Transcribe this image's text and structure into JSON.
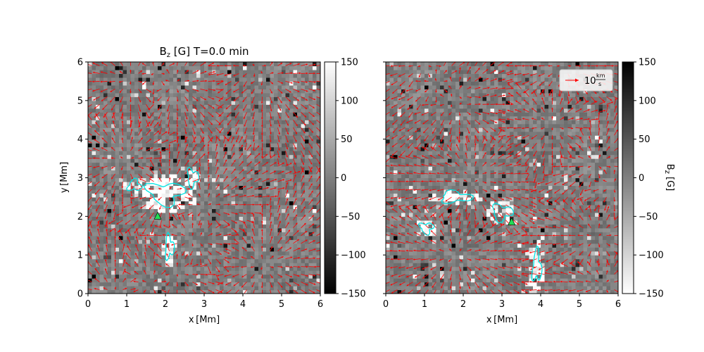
{
  "chart_data": [
    {
      "type": "heatmap",
      "title_main": "B",
      "title_sub": "z",
      "title_rest": " [G] T=0.0 min",
      "xlabel": "x [Mm]",
      "ylabel": "y [Mm]",
      "xlim": [
        0,
        6
      ],
      "ylim": [
        0,
        6
      ],
      "xticks": [
        "0",
        "1",
        "2",
        "3",
        "4",
        "5",
        "6"
      ],
      "yticks": [
        "0",
        "1",
        "2",
        "3",
        "4",
        "5",
        "6"
      ],
      "colormap": "gray",
      "clim": [
        -150,
        150
      ],
      "colorbar_ticks": [
        "−150",
        "−100",
        "−50",
        "0",
        "50",
        "100",
        "150"
      ],
      "vector_color": "#ff0000",
      "contour_color": "#00e5e5",
      "marker": {
        "shape": "triangle",
        "color": "#22dd55",
        "x": 1.8,
        "y": 2.0
      },
      "strong_regions": [
        {
          "x": 2.0,
          "y": 2.6,
          "rx": 0.8,
          "ry": 0.5,
          "sign": 1
        },
        {
          "x": 2.7,
          "y": 3.0,
          "rx": 0.25,
          "ry": 0.4,
          "sign": 1
        },
        {
          "x": 2.1,
          "y": 1.2,
          "rx": 0.2,
          "ry": 0.5,
          "sign": 1
        },
        {
          "x": 1.2,
          "y": 2.8,
          "rx": 0.3,
          "ry": 0.25,
          "sign": 1
        }
      ]
    },
    {
      "type": "heatmap",
      "xlabel": "x [Mm]",
      "xlim": [
        0,
        6
      ],
      "ylim": [
        0,
        6
      ],
      "xticks": [
        "0",
        "1",
        "2",
        "3",
        "4",
        "5",
        "6"
      ],
      "colormap": "gray_r",
      "clim": [
        -150,
        150
      ],
      "colorbar_ticks": [
        "−150",
        "−100",
        "−50",
        "0",
        "50",
        "100",
        "150"
      ],
      "colorbar_label_main": "B",
      "colorbar_label_sub": "z",
      "colorbar_label_rest": " [G]",
      "legend": {
        "value": "10",
        "unit_num": "km",
        "unit_den": "s",
        "placement": "upper right"
      },
      "vector_color": "#ff0000",
      "contour_color": "#00e5e5",
      "marker": {
        "shape": "triangle",
        "color": "#22dd55",
        "x": 3.25,
        "y": 1.85
      },
      "strong_regions": [
        {
          "x": 1.05,
          "y": 1.7,
          "rx": 0.3,
          "ry": 0.25,
          "sign": -1
        },
        {
          "x": 3.0,
          "y": 2.1,
          "rx": 0.45,
          "ry": 0.35,
          "sign": -1
        },
        {
          "x": 1.8,
          "y": 2.5,
          "rx": 0.7,
          "ry": 0.25,
          "sign": -1
        },
        {
          "x": 3.9,
          "y": 0.7,
          "rx": 0.2,
          "ry": 0.7,
          "sign": -1
        }
      ]
    }
  ]
}
